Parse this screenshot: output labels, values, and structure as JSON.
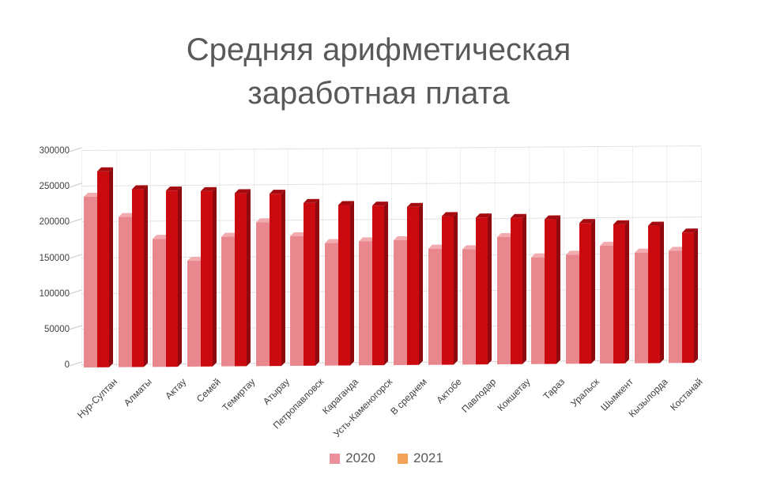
{
  "title": {
    "line1": "Средняя арифметическая",
    "line2": "заработная плата"
  },
  "chart_data": {
    "type": "bar",
    "style": "3d-clustered-column",
    "title": "Средняя арифметическая заработная плата",
    "categories": [
      "Нур-Султан",
      "Алматы",
      "Актау",
      "Семей",
      "Темиртау",
      "Атырау",
      "Петропавловск",
      "Караганда",
      "Усть-Каменогорск",
      "В среднем",
      "Актобе",
      "Павлодар",
      "Кокшетау",
      "Тараз",
      "Уральск",
      "Шымкент",
      "Кызылорда",
      "Костанай"
    ],
    "series": [
      {
        "name": "2020",
        "values": [
          240000,
          212000,
          180000,
          150000,
          183000,
          203000,
          183000,
          173000,
          175000,
          176000,
          164000,
          163000,
          179000,
          151000,
          154000,
          166000,
          156000,
          158000
        ],
        "face_color": "#e9878f",
        "top_color": "#f2abaf",
        "side_color": "#d4747c"
      },
      {
        "name": "2021",
        "values": [
          276000,
          250000,
          248000,
          247000,
          244000,
          242000,
          229000,
          226000,
          225000,
          222000,
          209000,
          207000,
          206000,
          204000,
          198000,
          196000,
          194000,
          184000
        ],
        "face_color": "#cb0a10",
        "top_color": "#a30b10",
        "side_color": "#8e0a0e"
      }
    ],
    "ylim": [
      0,
      300000
    ],
    "ytick_step": 50000,
    "ytick_labels": [
      "0",
      "50000",
      "100000",
      "150000",
      "200000",
      "250000",
      "300000"
    ],
    "xlabel": "",
    "ylabel": "",
    "grid": true,
    "legend_position": "bottom",
    "legend": [
      {
        "label": "2020",
        "color": "#ea919b"
      },
      {
        "label": "2021",
        "color": "#f2a359"
      }
    ]
  }
}
